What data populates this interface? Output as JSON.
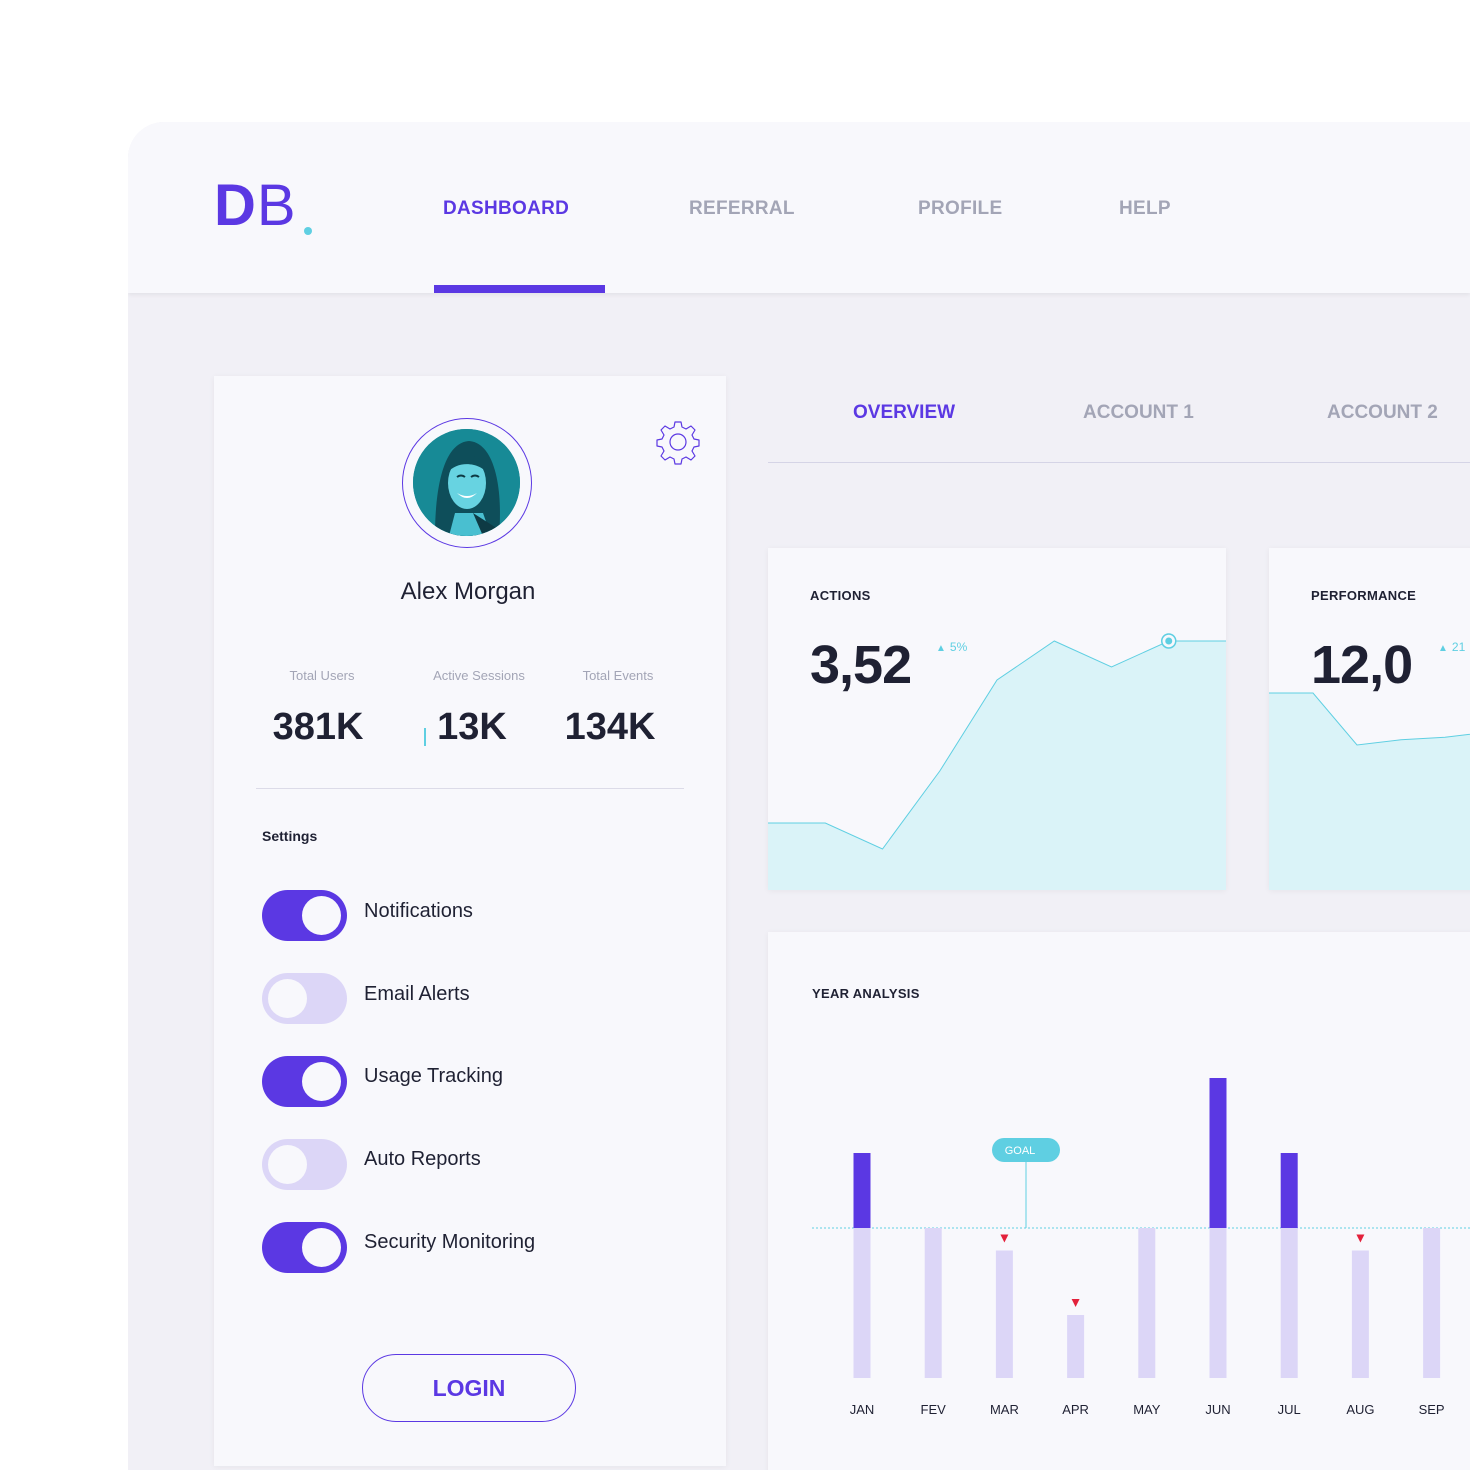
{
  "brand": {
    "logo_bold": "D",
    "logo_light": "B",
    "accent": "#5b38e3",
    "secondary": "#5fcfe2"
  },
  "nav": {
    "items": [
      {
        "label": "DASHBOARD",
        "active": true
      },
      {
        "label": "REFERRAL",
        "active": false
      },
      {
        "label": "PROFILE",
        "active": false
      },
      {
        "label": "HELP",
        "active": false
      }
    ]
  },
  "profile": {
    "name": "Alex Morgan",
    "settings_icon": "gear-icon",
    "stats": [
      {
        "label": "Total Users",
        "value": "381K"
      },
      {
        "label": "Active Sessions",
        "value": "13K"
      },
      {
        "label": "Total Events",
        "value": "134K"
      }
    ],
    "settings_title": "Settings",
    "toggles": [
      {
        "label": "Notifications",
        "on": true
      },
      {
        "label": "Email Alerts",
        "on": false
      },
      {
        "label": "Usage Tracking",
        "on": true
      },
      {
        "label": "Auto Reports",
        "on": false
      },
      {
        "label": "Security Monitoring",
        "on": true
      }
    ],
    "login_label": "LOGIN"
  },
  "subtabs": [
    {
      "label": "OVERVIEW",
      "active": true
    },
    {
      "label": "ACCOUNT 1",
      "active": false
    },
    {
      "label": "ACCOUNT 2",
      "active": false
    }
  ],
  "metrics": [
    {
      "title": "ACTIONS",
      "value": "3,52",
      "delta": "5%"
    },
    {
      "title": "PERFORMANCE",
      "value": "12,0",
      "delta": "21"
    }
  ],
  "year_analysis": {
    "title": "YEAR ANALYSIS",
    "goal_label": "GOAL"
  },
  "chart_data": [
    {
      "type": "area",
      "series": [
        {
          "values": [
            0.25,
            0.25,
            0.15,
            0.45,
            0.8,
            0.95,
            0.85,
            0.95,
            0.95
          ]
        }
      ],
      "highlight_index": 7
    },
    {
      "type": "area",
      "series": [
        {
          "values": [
            0.75,
            0.75,
            0.55,
            0.57,
            0.58,
            0.6
          ]
        }
      ]
    },
    {
      "type": "bar",
      "title": "YEAR ANALYSIS",
      "categories": [
        "JAN",
        "FEV",
        "MAR",
        "APR",
        "MAY",
        "JUN",
        "JUL",
        "AUG",
        "SEP"
      ],
      "values": [
        150,
        100,
        85,
        42,
        100,
        200,
        150,
        85,
        100
      ],
      "goal": 100,
      "below_goal": [
        "MAR",
        "APR",
        "AUG"
      ]
    }
  ]
}
